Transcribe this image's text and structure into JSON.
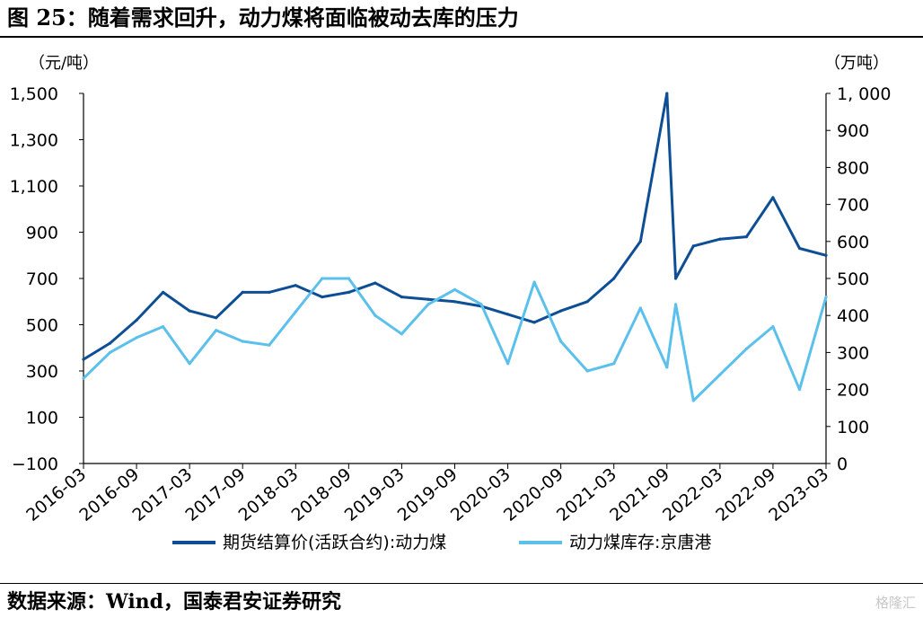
{
  "header": {
    "title": "图 25：随着需求回升，动力煤将面临被动去库的压力"
  },
  "footer": {
    "source": "数据来源：Wind，国泰君安证券研究",
    "watermark": "格隆汇"
  },
  "chart_data": {
    "type": "line",
    "x_tick_labels": [
      "2016-03",
      "2016-09",
      "2017-03",
      "2017-09",
      "2018-03",
      "2018-09",
      "2019-03",
      "2019-09",
      "2020-03",
      "2020-09",
      "2021-03",
      "2021-09",
      "2022-03",
      "2022-09",
      "2023-03"
    ],
    "x": [
      "2016-03",
      "2016-06",
      "2016-09",
      "2016-12",
      "2017-03",
      "2017-06",
      "2017-09",
      "2017-12",
      "2018-03",
      "2018-06",
      "2018-09",
      "2018-12",
      "2019-03",
      "2019-06",
      "2019-09",
      "2019-12",
      "2020-03",
      "2020-06",
      "2020-09",
      "2020-12",
      "2021-03",
      "2021-06",
      "2021-09",
      "2021-10",
      "2021-12",
      "2022-03",
      "2022-06",
      "2022-09",
      "2022-12",
      "2023-03"
    ],
    "left_axis": {
      "unit": "（元/吨）",
      "ylim": [
        -100,
        1500
      ],
      "ticks": [
        -100,
        100,
        300,
        500,
        700,
        900,
        1100,
        1300,
        1500
      ],
      "tick_labels": [
        "−100",
        "100",
        "300",
        "500",
        "700",
        "900",
        "1,100",
        "1,300",
        "1,500"
      ]
    },
    "right_axis": {
      "unit": "（万吨）",
      "ylim": [
        0,
        1000
      ],
      "ticks": [
        0,
        100,
        200,
        300,
        400,
        500,
        600,
        700,
        800,
        900,
        1000
      ],
      "tick_labels": [
        "0",
        "100",
        "200",
        "300",
        "400",
        "500",
        "600",
        "700",
        "800",
        "900",
        "1, 000"
      ]
    },
    "grid": false,
    "legend_position": "bottom",
    "series": [
      {
        "name": "期货结算价(活跃合约):动力煤",
        "axis": "left",
        "color": "#0d4e95",
        "values": [
          350,
          420,
          520,
          640,
          560,
          530,
          640,
          640,
          670,
          620,
          640,
          680,
          620,
          610,
          600,
          580,
          545,
          510,
          560,
          600,
          700,
          860,
          1500,
          700,
          840,
          870,
          880,
          1050,
          830,
          800
        ]
      },
      {
        "name": "动力煤库存:京唐港",
        "axis": "right",
        "color": "#5bc0eb",
        "values": [
          230,
          300,
          340,
          370,
          270,
          360,
          330,
          320,
          410,
          500,
          500,
          400,
          350,
          430,
          470,
          430,
          270,
          490,
          330,
          250,
          270,
          420,
          260,
          430,
          170,
          240,
          310,
          370,
          200,
          450
        ]
      }
    ]
  }
}
